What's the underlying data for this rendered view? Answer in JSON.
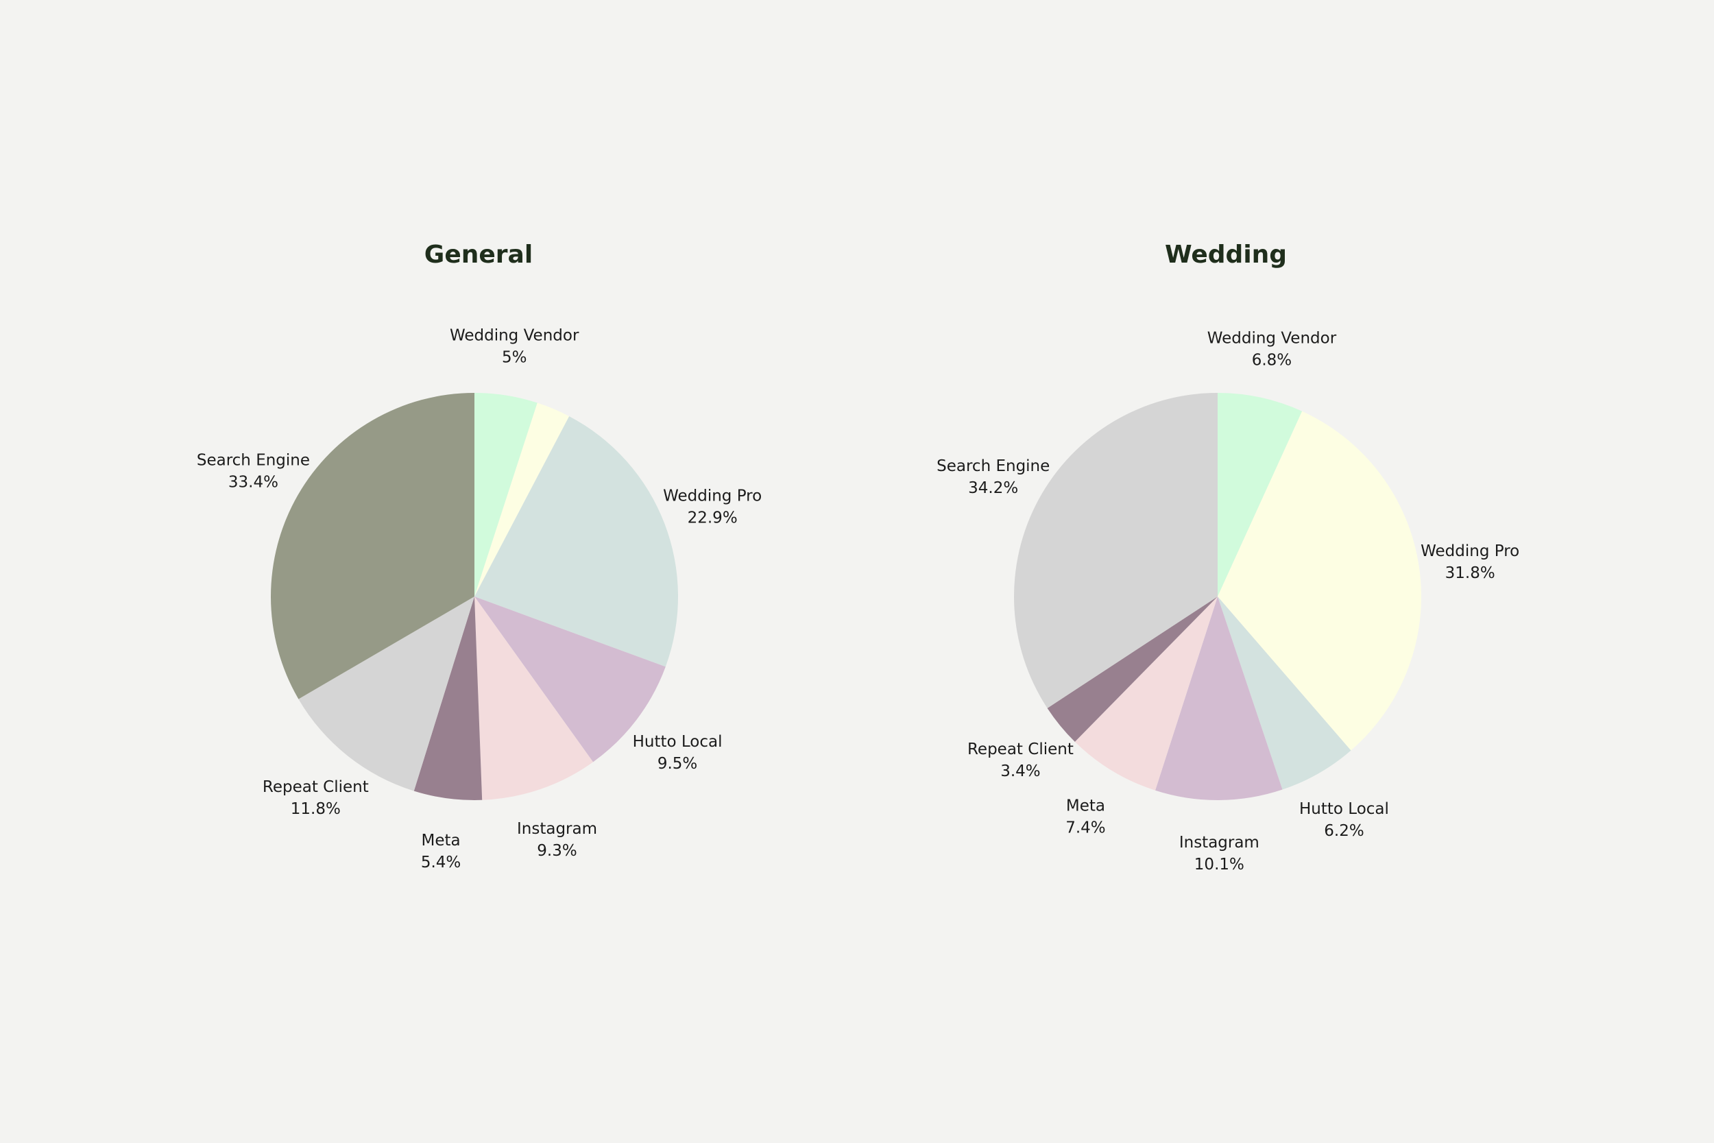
{
  "chart_data": [
    {
      "type": "pie",
      "title": "General",
      "start": "top",
      "direction": "clockwise",
      "slices": [
        {
          "label": "Wedding Vendor",
          "value": 5.0,
          "display": "5%",
          "color": "#d1fbdc",
          "show_label": true
        },
        {
          "label": "",
          "value": 2.7,
          "display": "",
          "color": "#fdfee3",
          "show_label": false
        },
        {
          "label": "Wedding Pro",
          "value": 22.9,
          "display": "22.9%",
          "color": "#d3e2df",
          "show_label": true
        },
        {
          "label": "Hutto Local",
          "value": 9.5,
          "display": "9.5%",
          "color": "#d3bcd1",
          "show_label": true
        },
        {
          "label": "Instagram",
          "value": 9.3,
          "display": "9.3%",
          "color": "#f3dcdd",
          "show_label": true
        },
        {
          "label": "Meta",
          "value": 5.4,
          "display": "5.4%",
          "color": "#98808f",
          "show_label": true
        },
        {
          "label": "Repeat Client",
          "value": 11.8,
          "display": "11.8%",
          "color": "#d5d5d5",
          "show_label": true
        },
        {
          "label": "Search Engine",
          "value": 33.4,
          "display": "33.4%",
          "color": "#969a87",
          "show_label": true
        }
      ]
    },
    {
      "type": "pie",
      "title": "Wedding",
      "start": "top",
      "direction": "clockwise",
      "slices": [
        {
          "label": "Wedding Vendor",
          "value": 6.8,
          "display": "6.8%",
          "color": "#d1fbdc",
          "show_label": true
        },
        {
          "label": "Wedding Pro",
          "value": 31.8,
          "display": "31.8%",
          "color": "#fdfee3",
          "show_label": true
        },
        {
          "label": "Hutto Local",
          "value": 6.2,
          "display": "6.2%",
          "color": "#d3e2df",
          "show_label": true
        },
        {
          "label": "Instagram",
          "value": 10.1,
          "display": "10.1%",
          "color": "#d3bcd1",
          "show_label": true
        },
        {
          "label": "Meta",
          "value": 7.4,
          "display": "7.4%",
          "color": "#f3dcdd",
          "show_label": true
        },
        {
          "label": "Repeat Client",
          "value": 3.4,
          "display": "3.4%",
          "color": "#98808f",
          "show_label": true
        },
        {
          "label": "Search Engine",
          "value": 34.2,
          "display": "34.2%",
          "color": "#d5d5d5",
          "show_label": true
        }
      ]
    }
  ]
}
